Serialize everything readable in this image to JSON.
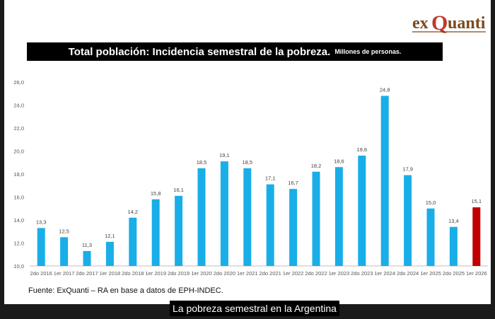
{
  "header": {
    "logo_text": "exQuanti",
    "logo_colors": {
      "ex": "#7a4a1e",
      "q": "#c0392b",
      "uanti": "#7a4a1e"
    }
  },
  "chart_data": {
    "type": "bar",
    "title": "Total población: Incidencia semestral de la pobreza.",
    "subtitle": "Millones de personas.",
    "xlabel": "",
    "ylabel": "",
    "categories": [
      "2do 2016",
      "1er 2017",
      "2do 2017",
      "1er 2018",
      "2do 2018",
      "1er 2019",
      "2do 2019",
      "1er 2020",
      "2do 2020",
      "1er 2021",
      "2do 2021",
      "1er 2022",
      "2do 2022",
      "1er 2023",
      "2do 2023",
      "1er 2024",
      "2do 2024",
      "1er 2025",
      "2do 2025",
      "1er 2026"
    ],
    "values": [
      13.3,
      12.5,
      11.3,
      12.1,
      14.2,
      15.8,
      16.1,
      18.5,
      19.1,
      18.5,
      17.1,
      16.7,
      18.2,
      18.6,
      19.6,
      24.8,
      17.9,
      15.0,
      13.4,
      15.1
    ],
    "value_labels": [
      "13,3",
      "12,5",
      "11,3",
      "12,1",
      "14,2",
      "15,8",
      "16,1",
      "18,5",
      "19,1",
      "18,5",
      "17,1",
      "16,7",
      "18,2",
      "18,6",
      "19,6",
      "24,8",
      "17,9",
      "15,0",
      "13,4",
      "15,1"
    ],
    "ylim": [
      10,
      26
    ],
    "yticks": [
      "10,0",
      "12,0",
      "14,0",
      "16,0",
      "18,0",
      "20,0",
      "22,0",
      "24,0",
      "26,0"
    ],
    "grid": false,
    "legend": "none",
    "colors": {
      "bar": "#19aee8",
      "highlight": "#c00000",
      "highlight_category": "1er 2026"
    }
  },
  "footer": {
    "source": "Fuente: ExQuanti – RA en base a datos de EPH-INDEC."
  },
  "video": {
    "caption": "La pobreza semestral en la Argentina"
  }
}
